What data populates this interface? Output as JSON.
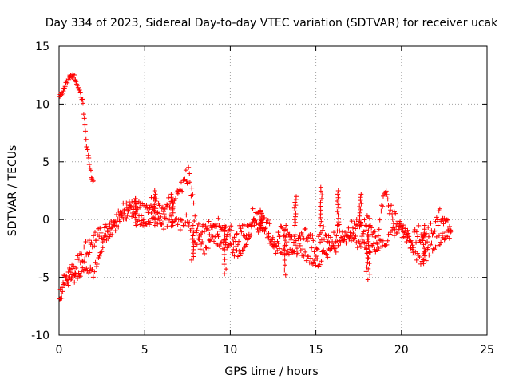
{
  "chart_data": {
    "type": "scatter",
    "title": "Day 334 of 2023, Sidereal Day-to-day VTEC variation (SDTVAR) for receiver ucak",
    "xlabel": "GPS time / hours",
    "ylabel": "SDTVAR / TECUs",
    "xlim": [
      0,
      25
    ],
    "ylim": [
      -10,
      15
    ],
    "xticks": [
      "0",
      "5",
      "10",
      "15",
      "20",
      "25"
    ],
    "yticks": [
      "-10",
      "-5",
      "0",
      "5",
      "10",
      "15"
    ],
    "grid": true,
    "marker": "+",
    "colors": {
      "series": "#ff0000",
      "grid": "#a0a0a0",
      "axis": "#000000"
    },
    "series": [
      {
        "name": "SDTVAR",
        "x": [
          0.0,
          0.2,
          0.4,
          0.6,
          0.8,
          1.0,
          1.2,
          1.4,
          1.5,
          1.6,
          1.7,
          1.8,
          1.9,
          2.0
        ],
        "y": [
          10.5,
          11.0,
          11.9,
          12.3,
          12.5,
          12.0,
          11.2,
          10.0,
          8.0,
          6.5,
          5.5,
          4.5,
          3.7,
          3.4
        ]
      },
      {
        "name": "SDTVAR",
        "x": [
          0.0,
          0.1,
          0.2,
          0.3,
          0.5,
          0.7,
          1.0,
          1.3,
          1.6,
          2.0,
          2.2,
          2.5,
          3.0,
          3.5,
          4.0,
          4.5,
          5.0,
          5.5,
          6.0,
          6.5,
          7.0,
          7.3,
          7.6,
          7.8,
          8.0,
          8.5,
          9.0,
          9.3,
          9.6,
          10.0,
          10.3,
          10.6,
          11.0,
          11.3,
          11.6,
          12.0,
          12.3,
          12.6,
          13.0,
          13.3,
          13.6,
          14.0,
          14.3,
          14.6,
          15.0,
          15.3,
          15.6,
          16.0,
          16.3,
          16.6,
          17.0,
          17.3,
          17.6,
          18.0,
          18.3,
          18.6,
          19.0,
          19.3,
          19.6,
          20.0,
          20.3,
          20.6,
          21.0,
          21.3,
          21.6,
          22.0,
          22.3,
          22.6,
          22.9
        ],
        "y": [
          -7.5,
          -6.8,
          -6.2,
          -5.5,
          -5.0,
          -4.5,
          -4.0,
          -3.2,
          -2.5,
          -2.0,
          -1.5,
          -1.3,
          -0.8,
          0.0,
          0.5,
          1.2,
          0.5,
          1.5,
          0.8,
          1.5,
          2.0,
          3.5,
          4.0,
          1.5,
          -1.0,
          -0.5,
          -1.0,
          -0.5,
          -1.5,
          -1.0,
          -2.0,
          -1.0,
          -1.2,
          0.3,
          -0.5,
          0.0,
          -1.0,
          -2.5,
          -1.0,
          -1.5,
          -2.0,
          -2.0,
          -1.0,
          -1.5,
          -2.5,
          -1.0,
          -1.5,
          -2.0,
          -0.8,
          -1.5,
          -1.0,
          -0.5,
          -1.0,
          0.0,
          -1.0,
          -1.5,
          2.5,
          1.0,
          0.0,
          -1.0,
          -1.5,
          -2.0,
          -1.0,
          -2.0,
          -1.0,
          -0.5,
          0.5,
          -0.5,
          -1.0
        ]
      },
      {
        "name": "SDTVAR",
        "x": [
          0.0,
          0.2,
          0.5,
          0.8,
          1.2,
          1.6,
          2.0,
          2.3,
          2.6,
          3.0,
          3.4,
          3.8,
          4.2,
          4.6,
          5.0,
          5.5,
          6.0,
          6.5,
          7.0,
          7.5,
          8.0,
          8.5,
          9.0,
          9.5,
          10.0,
          10.5,
          11.0,
          11.5,
          12.0,
          12.5,
          13.0,
          13.5,
          14.0,
          14.5,
          15.0,
          15.5,
          16.0,
          16.5,
          17.0,
          17.5,
          18.0,
          18.5,
          19.0,
          19.5,
          20.0,
          20.5,
          21.0,
          21.5,
          22.0,
          22.5,
          22.9
        ],
        "y": [
          -6.5,
          -6.0,
          -5.5,
          -5.2,
          -4.5,
          -4.0,
          -4.8,
          -3.0,
          -2.0,
          -1.0,
          0.5,
          1.0,
          1.5,
          0.0,
          -0.5,
          0.5,
          -0.5,
          0.0,
          -0.5,
          0.0,
          -2.0,
          -2.5,
          -1.5,
          -2.0,
          -2.5,
          -3.0,
          -2.0,
          0.5,
          -1.0,
          -2.0,
          -2.5,
          -3.0,
          -2.5,
          -3.5,
          -4.0,
          -3.0,
          -2.5,
          -2.0,
          -1.5,
          -2.0,
          -2.5,
          -2.5,
          -2.0,
          -1.0,
          -0.5,
          -2.0,
          -3.5,
          -3.0,
          -2.0,
          -1.5,
          -1.0
        ]
      }
    ],
    "excursions": [
      {
        "x": 9.7,
        "y": -4.7
      },
      {
        "x": 7.8,
        "y": -3.5
      },
      {
        "x": 13.2,
        "y": -4.8
      },
      {
        "x": 15.3,
        "y": 2.8
      },
      {
        "x": 16.3,
        "y": 2.5
      },
      {
        "x": 17.6,
        "y": 2.2
      },
      {
        "x": 18.0,
        "y": -4.5
      },
      {
        "x": 18.1,
        "y": -5.2
      },
      {
        "x": 13.8,
        "y": 2.0
      },
      {
        "x": 4.5,
        "y": 1.8
      },
      {
        "x": 5.6,
        "y": 2.5
      },
      {
        "x": 6.6,
        "y": 2.2
      },
      {
        "x": 11.8,
        "y": 0.8
      },
      {
        "x": 21.3,
        "y": -3.8
      }
    ]
  }
}
